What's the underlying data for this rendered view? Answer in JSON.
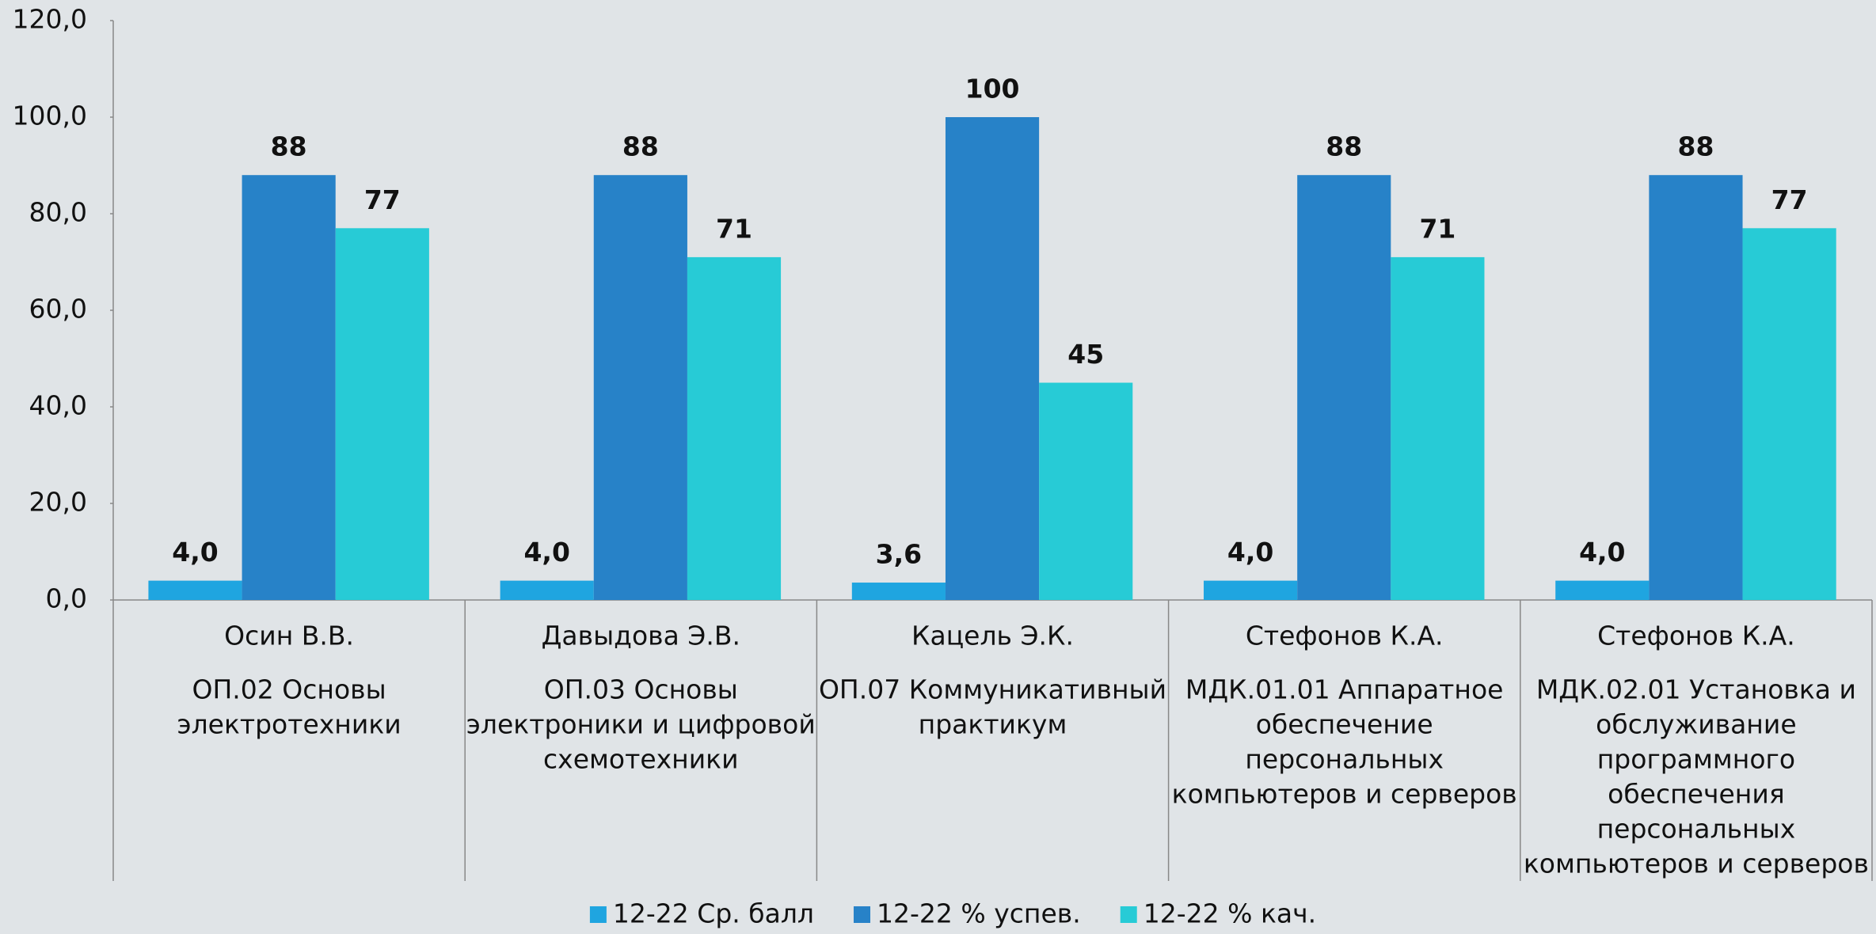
{
  "chart_data": {
    "type": "bar",
    "categories": [
      [
        "Осин В.В.",
        "ОП.02 Основы",
        "электротехники"
      ],
      [
        "Давыдова Э.В.",
        "ОП.03 Основы",
        "электроники и цифровой",
        "схемотехники"
      ],
      [
        "Кацель Э.К.",
        "ОП.07 Коммуникативный",
        "практикум"
      ],
      [
        "Стефонов К.А.",
        "МДК.01.01 Аппаратное",
        "обеспечение",
        "персональных",
        "компьютеров и серверов"
      ],
      [
        "Стефонов К.А.",
        "МДК.02.01 Установка и",
        "обслуживание",
        "программного",
        "обеспечения",
        "персональных",
        "компьютеров и серверов"
      ]
    ],
    "series": [
      {
        "name": "12-22 Ср. балл",
        "color": "#1fa5e0",
        "values": [
          4,
          4,
          3.6,
          4,
          4
        ],
        "value_labels": [
          "4,0",
          "4,0",
          "3,6",
          "4,0",
          "4,0"
        ]
      },
      {
        "name": "12-22 % успев.",
        "color": "#2782c8",
        "values": [
          88,
          88,
          100,
          88,
          88
        ]
      },
      {
        "name": "12-22 % кач.",
        "color": "#27cbd6",
        "values": [
          77,
          71,
          45,
          71,
          77
        ]
      }
    ],
    "ylim": [
      0,
      120
    ],
    "yticks": [
      {
        "value": 0,
        "label": "0,0"
      },
      {
        "value": 20,
        "label": "20,0"
      },
      {
        "value": 40,
        "label": "40,0"
      },
      {
        "value": 60,
        "label": "60,0"
      },
      {
        "value": 80,
        "label": "80,0"
      },
      {
        "value": 100,
        "label": "100,0"
      },
      {
        "value": 120,
        "label": "120,0"
      }
    ],
    "legend": "bottom"
  }
}
